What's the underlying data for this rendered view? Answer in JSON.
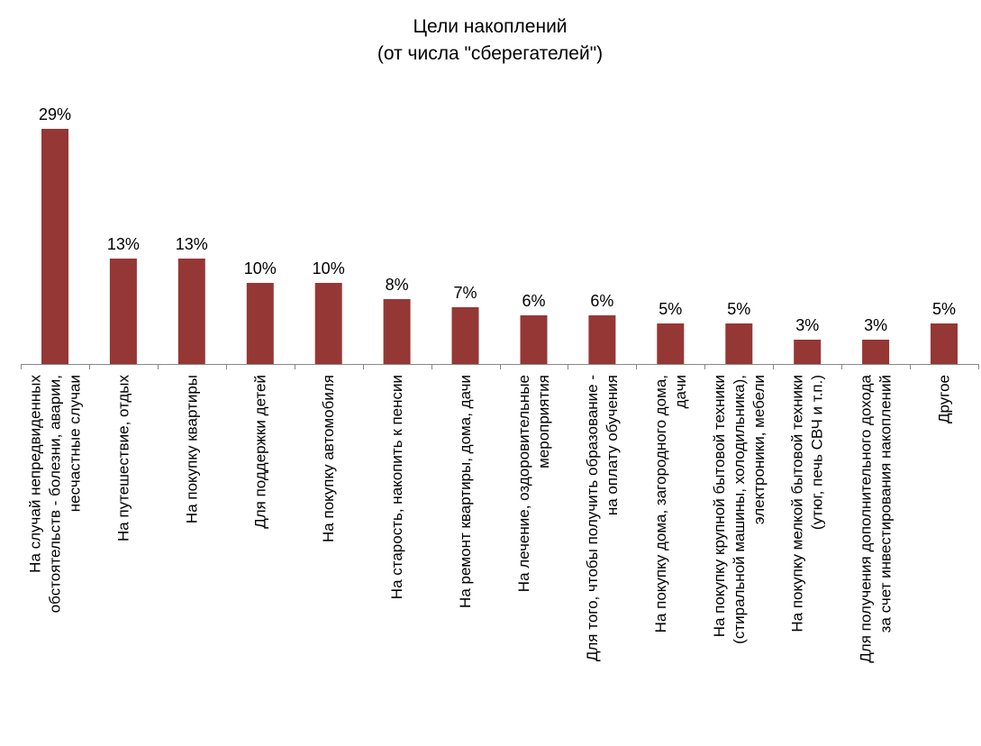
{
  "chart_data": {
    "type": "bar",
    "title": "Цели накоплений",
    "subtitle": "(от числа \"сберегателей\")",
    "categories": [
      [
        "На случай непредвиденных",
        "обстоятельств - болезни, аварии,",
        "несчастные случаи"
      ],
      [
        "На путешествие, отдых"
      ],
      [
        "На покупку квартиры"
      ],
      [
        "Для поддержки детей"
      ],
      [
        "На покупку автомобиля"
      ],
      [
        "На старость, накопить к пенсии"
      ],
      [
        "На ремонт квартиры, дома, дачи"
      ],
      [
        "На лечение, оздоровительные",
        "мероприятия"
      ],
      [
        "Для того, чтобы получить образование -",
        "на оплату обучения"
      ],
      [
        "На покупку дома, загородного дома,",
        "дачи"
      ],
      [
        "На покупку крупной бытовой техники",
        "(стиральной машины, холодильника),",
        "электроники, мебели"
      ],
      [
        "На покупку мелкой бытовой техники",
        "(утюг, печь СВЧ и т.п.)"
      ],
      [
        "Для получения дополнительного дохода",
        "за счет инвестирования накоплений"
      ],
      [
        "Другое"
      ]
    ],
    "values": [
      29,
      13,
      13,
      10,
      10,
      8,
      7,
      6,
      6,
      5,
      5,
      3,
      3,
      5
    ],
    "value_labels": [
      "29%",
      "13%",
      "13%",
      "10%",
      "10%",
      "8%",
      "7%",
      "6%",
      "6%",
      "5%",
      "5%",
      "3%",
      "3%",
      "5%"
    ],
    "unit": "%",
    "xlabel": "",
    "ylabel": "",
    "ylim": [
      0,
      30
    ],
    "grid": false,
    "legend": "none",
    "bar_color": "#953735",
    "axis_color": "#888888"
  }
}
